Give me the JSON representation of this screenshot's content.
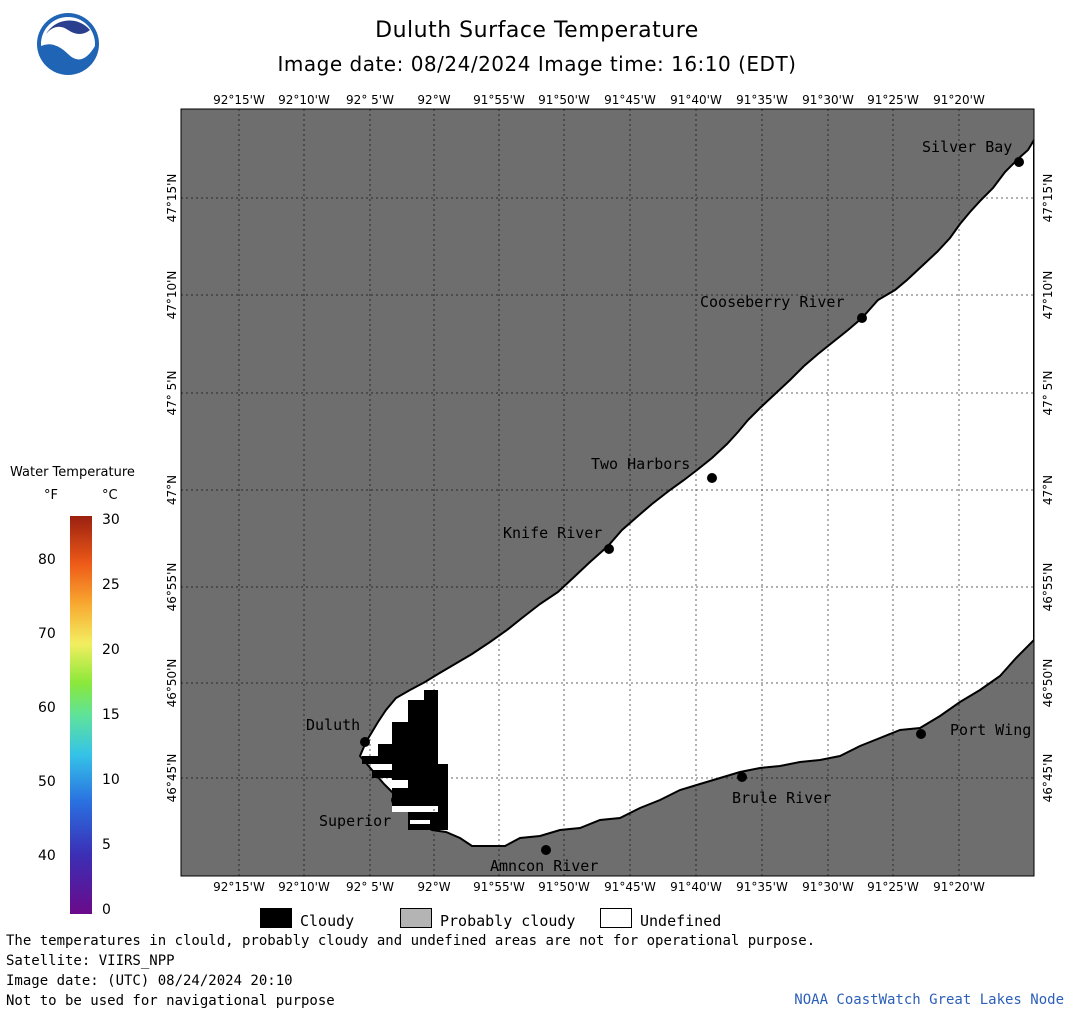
{
  "header": {
    "title": "Duluth Surface Temperature",
    "image_date_line": "Image date: 08/24/2024     Image time: 16:10 (EDT)"
  },
  "logo": {
    "text": "NOAA",
    "icon": "noaa-logo"
  },
  "map": {
    "lon_labels": [
      "92°15'W",
      "92°10'W",
      "92° 5'W",
      "92°W",
      "91°55'W",
      "91°50'W",
      "91°45'W",
      "91°40'W",
      "91°35'W",
      "91°30'W",
      "91°25'W",
      "91°20'W"
    ],
    "lat_labels": [
      "47°15'N",
      "47°10'N",
      "47° 5'N",
      "47°N",
      "46°55'N",
      "46°50'N",
      "46°45'N"
    ],
    "places": [
      {
        "name": "Silver Bay"
      },
      {
        "name": "Cooseberry River"
      },
      {
        "name": "Two Harbors"
      },
      {
        "name": "Knife River"
      },
      {
        "name": "Duluth"
      },
      {
        "name": "Superior"
      },
      {
        "name": "Amncon River"
      },
      {
        "name": "Brule River"
      },
      {
        "name": "Port Wing"
      }
    ],
    "colors": {
      "land": "#6e6e6e",
      "lake": "#ffffff",
      "cloud": "#000000",
      "grid": "#000000"
    }
  },
  "legend": {
    "title": "Water Temperature",
    "unit_f": "°F",
    "unit_c": "°C",
    "f_ticks": [
      "80",
      "70",
      "60",
      "50",
      "40"
    ],
    "c_ticks": [
      "30",
      "25",
      "20",
      "15",
      "10",
      "5",
      "0"
    ]
  },
  "key": {
    "cloudy": "Cloudy",
    "probably_cloudy": "Probably cloudy",
    "undefined": "Undefined"
  },
  "footer": {
    "line1": "The temperatures in clould, probably cloudy and undefined areas are not for operational purpose.",
    "line2": "Satellite: VIIRS_NPP",
    "line3": "Image date: (UTC) 08/24/2024  20:10",
    "line4": "Not to be used for navigational purpose",
    "credit": "NOAA CoastWatch Great Lakes Node"
  }
}
